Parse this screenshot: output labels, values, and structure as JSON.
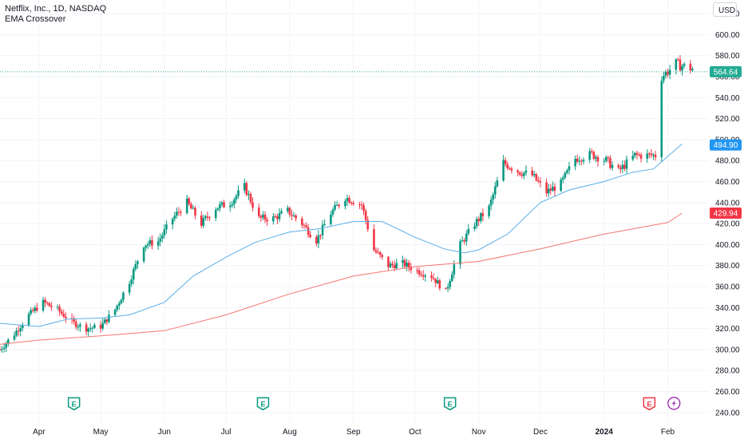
{
  "header": {
    "title": "Netflix, Inc., 1D, NASDAQ",
    "indicator": "EMA Crossover"
  },
  "currency": "USD",
  "chart_data": {
    "type": "candlestick",
    "title": "Netflix, Inc., 1D, NASDAQ",
    "indicator": "EMA Crossover",
    "y_ticks": [
      240,
      260,
      280,
      300,
      320,
      340,
      360,
      380,
      400,
      420,
      440,
      460,
      480,
      500,
      520,
      540,
      560,
      580,
      600,
      620
    ],
    "ylim": [
      230,
      633
    ],
    "x_labels": [
      "Apr",
      "May",
      "Jun",
      "Jul",
      "Aug",
      "Sep",
      "Oct",
      "Nov",
      "Dec",
      "2024",
      "Feb"
    ],
    "x_label_dates": [
      "2023-04-01",
      "2023-05-01",
      "2023-06-01",
      "2023-07-01",
      "2023-08-01",
      "2023-09-01",
      "2023-10-01",
      "2023-11-01",
      "2023-12-01",
      "2024-01-01",
      "2024-02-01"
    ],
    "date_range": [
      "2023-03-13",
      "2024-02-21"
    ],
    "price_markers": [
      {
        "label": "564.64",
        "value": 564.64,
        "color": "#22ab94",
        "dotted_line": true
      },
      {
        "label": "494.90",
        "value": 494.9,
        "color": "#2196f3",
        "dotted_line": false
      },
      {
        "label": "429.94",
        "value": 429.94,
        "color": "#f23645",
        "dotted_line": false
      }
    ],
    "colors": {
      "up": "#089981",
      "down": "#f23645",
      "ema_fast": "#5aaee6",
      "ema_slow": "#f5756f",
      "grid": "#f0f3fa"
    },
    "close_series": {
      "dates": [
        "2023-03-13",
        "2023-03-20",
        "2023-03-27",
        "2023-04-03",
        "2023-04-10",
        "2023-04-17",
        "2023-04-24",
        "2023-05-01",
        "2023-05-08",
        "2023-05-15",
        "2023-05-22",
        "2023-05-29",
        "2023-06-05",
        "2023-06-12",
        "2023-06-19",
        "2023-06-26",
        "2023-07-03",
        "2023-07-10",
        "2023-07-17",
        "2023-07-24",
        "2023-07-31",
        "2023-08-07",
        "2023-08-14",
        "2023-08-21",
        "2023-08-28",
        "2023-09-05",
        "2023-09-11",
        "2023-09-18",
        "2023-09-25",
        "2023-10-02",
        "2023-10-09",
        "2023-10-16",
        "2023-10-23",
        "2023-10-30",
        "2023-11-06",
        "2023-11-13",
        "2023-11-20",
        "2023-11-27",
        "2023-12-04",
        "2023-12-11",
        "2023-12-18",
        "2023-12-26",
        "2024-01-02",
        "2024-01-08",
        "2024-01-16",
        "2024-01-22",
        "2024-01-29",
        "2024-02-05",
        "2024-02-12",
        "2024-02-20"
      ],
      "values": [
        300,
        315,
        333,
        345,
        338,
        326,
        320,
        322,
        338,
        365,
        400,
        403,
        425,
        440,
        420,
        435,
        440,
        455,
        425,
        425,
        432,
        420,
        404,
        430,
        445,
        438,
        395,
        380,
        382,
        375,
        370,
        355,
        400,
        420,
        435,
        478,
        470,
        466,
        450,
        458,
        482,
        486,
        480,
        470,
        485,
        485,
        560,
        572,
        568,
        564.64
      ]
    },
    "candle_ranges": [
      {
        "label": "Tallest high (mid Jul)",
        "value": 485
      },
      {
        "label": "Earnings gap low (late Jan)",
        "value": 538
      },
      {
        "label": "Peak high (late Jan)",
        "value": 579
      }
    ],
    "ema_fast": {
      "dates": [
        "2023-03-13",
        "2023-04-01",
        "2023-04-15",
        "2023-05-01",
        "2023-05-15",
        "2023-06-01",
        "2023-06-15",
        "2023-07-01",
        "2023-07-15",
        "2023-08-01",
        "2023-08-15",
        "2023-09-01",
        "2023-09-15",
        "2023-10-01",
        "2023-10-15",
        "2023-10-25",
        "2023-11-01",
        "2023-11-15",
        "2023-12-01",
        "2023-12-15",
        "2024-01-01",
        "2024-01-15",
        "2024-01-25",
        "2024-02-08"
      ],
      "values": [
        325,
        322,
        329,
        330,
        333,
        345,
        370,
        388,
        402,
        412,
        415,
        422,
        422,
        407,
        396,
        392,
        395,
        410,
        440,
        452,
        460,
        469,
        472,
        496
      ]
    },
    "ema_slow": {
      "dates": [
        "2023-03-13",
        "2023-04-01",
        "2023-05-01",
        "2023-06-01",
        "2023-07-01",
        "2023-08-01",
        "2023-09-01",
        "2023-10-01",
        "2023-11-01",
        "2023-12-01",
        "2024-01-01",
        "2024-02-01",
        "2024-02-08"
      ],
      "values": [
        305,
        309,
        313,
        318,
        333,
        353,
        370,
        379,
        384,
        396,
        410,
        421,
        430
      ]
    }
  },
  "markers": {
    "earnings": [
      "E",
      "E",
      "E",
      "E"
    ],
    "earnings_dates": [
      "2023-04-18",
      "2023-07-19",
      "2023-10-18",
      "2024-01-23"
    ],
    "dividend_icon": "lightning-icon",
    "dividend_date": "2024-02-04"
  }
}
